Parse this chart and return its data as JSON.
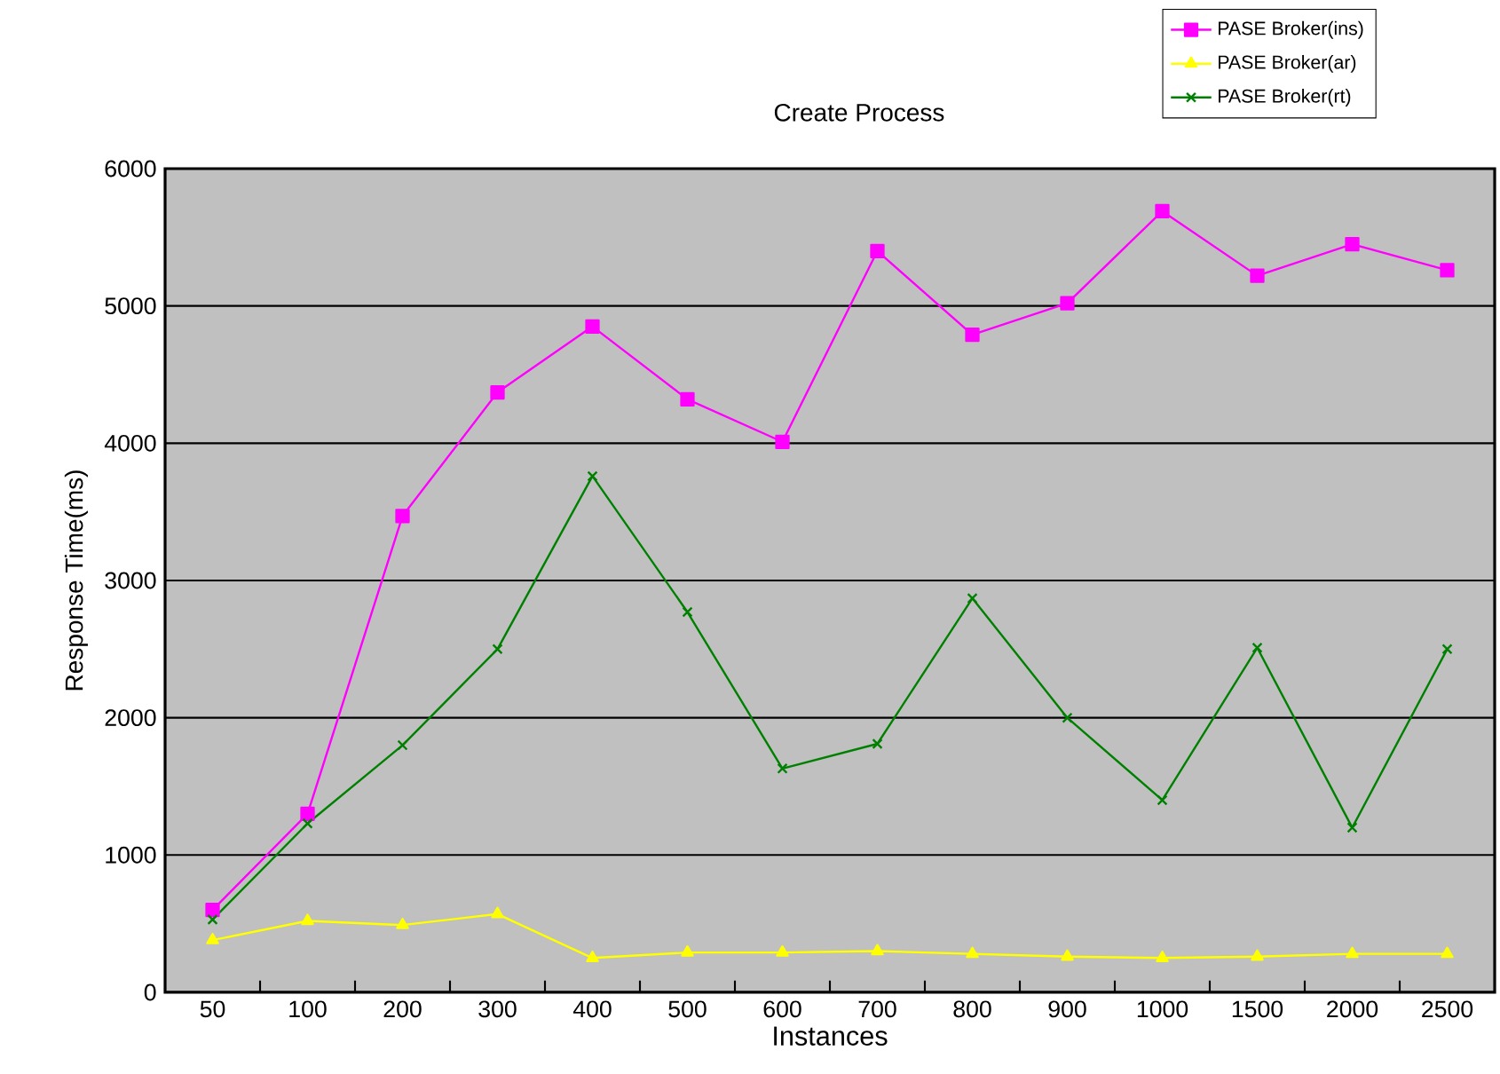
{
  "chart_data": {
    "type": "line",
    "title": "Create Process",
    "xlabel": "Instances",
    "ylabel": "Response Time(ms)",
    "categories": [
      "50",
      "100",
      "200",
      "300",
      "400",
      "500",
      "600",
      "700",
      "800",
      "900",
      "1000",
      "1500",
      "2000",
      "2500"
    ],
    "series": [
      {
        "name": "PASE Broker(ins)",
        "color": "#ff00ff",
        "marker": "square",
        "values": [
          600,
          1300,
          3470,
          4370,
          4850,
          4320,
          4010,
          5400,
          4790,
          5020,
          5690,
          5220,
          5450,
          5260
        ]
      },
      {
        "name": "PASE Broker(ar)",
        "color": "#ffff00",
        "marker": "triangle",
        "values": [
          380,
          520,
          490,
          570,
          250,
          290,
          290,
          300,
          280,
          260,
          250,
          260,
          280,
          280
        ]
      },
      {
        "name": "PASE Broker(rt)",
        "color": "#008000",
        "marker": "cross",
        "values": [
          530,
          1230,
          1800,
          2500,
          3760,
          2770,
          1630,
          1810,
          2870,
          2000,
          1400,
          2510,
          1200,
          2500
        ]
      }
    ],
    "ylim": [
      0,
      6000
    ],
    "yticks": [
      0,
      1000,
      2000,
      3000,
      4000,
      5000,
      6000
    ],
    "grid": "y",
    "legend": "top right",
    "line_style": "solid"
  }
}
